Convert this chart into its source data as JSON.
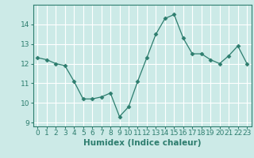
{
  "x": [
    0,
    1,
    2,
    3,
    4,
    5,
    6,
    7,
    8,
    9,
    10,
    11,
    12,
    13,
    14,
    15,
    16,
    17,
    18,
    19,
    20,
    21,
    22,
    23
  ],
  "y": [
    12.3,
    12.2,
    12.0,
    11.9,
    11.1,
    10.2,
    10.2,
    10.3,
    10.5,
    9.3,
    9.8,
    11.1,
    12.3,
    13.5,
    14.3,
    14.5,
    13.3,
    12.5,
    12.5,
    12.2,
    12.0,
    12.4,
    12.9,
    12.0
  ],
  "line_color": "#2d7d6e",
  "marker": "D",
  "marker_size": 2.5,
  "bg_color": "#cceae7",
  "grid_color": "#ffffff",
  "xlabel": "Humidex (Indice chaleur)",
  "ylim": [
    8.8,
    15.0
  ],
  "xlim": [
    -0.5,
    23.5
  ],
  "yticks": [
    9,
    10,
    11,
    12,
    13,
    14
  ],
  "xticks": [
    0,
    1,
    2,
    3,
    4,
    5,
    6,
    7,
    8,
    9,
    10,
    11,
    12,
    13,
    14,
    15,
    16,
    17,
    18,
    19,
    20,
    21,
    22,
    23
  ],
  "xlabel_fontsize": 7.5,
  "tick_fontsize": 6.5,
  "spine_color": "#2d7d6e"
}
